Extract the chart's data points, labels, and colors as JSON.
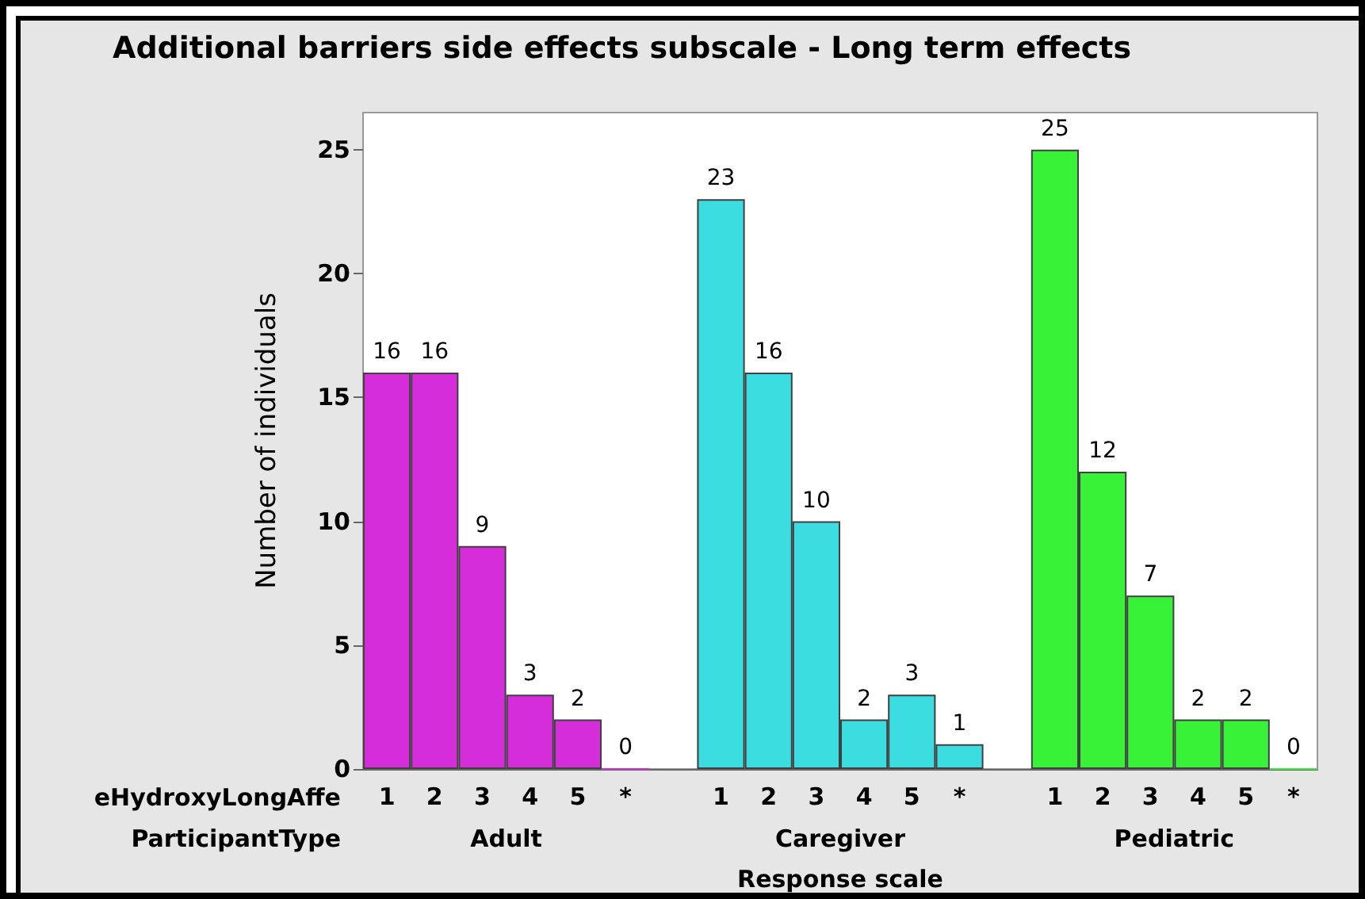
{
  "chart_data": {
    "type": "bar",
    "title": "Additional barriers side effects subscale - Long term effects",
    "xlabel": "Response scale",
    "ylabel": "Number of individuals",
    "categories": [
      "1",
      "2",
      "3",
      "4",
      "5",
      "*",
      null,
      "1",
      "2",
      "3",
      "4",
      "5",
      "*",
      null,
      "1",
      "2",
      "3",
      "4",
      "5",
      "*"
    ],
    "values": [
      16,
      16,
      9,
      3,
      2,
      0,
      null,
      23,
      16,
      10,
      2,
      3,
      1,
      null,
      25,
      12,
      7,
      2,
      2,
      0
    ],
    "colors": [
      "#d62ddb",
      "#d62ddb",
      "#d62ddb",
      "#d62ddb",
      "#d62ddb",
      "#d62ddb",
      null,
      "#3bdde0",
      "#3bdde0",
      "#3bdde0",
      "#3bdde0",
      "#3bdde0",
      "#3bdde0",
      null,
      "#38f238",
      "#38f238",
      "#38f238",
      "#38f238",
      "#38f238",
      "#38f238"
    ],
    "annotations": [
      "eHydroxyLongAffe",
      "ParticipantType",
      "Adult",
      "Caregiver",
      "Pediatric"
    ],
    "ylim": [
      0,
      26.5
    ],
    "yticks": [
      0,
      5,
      10,
      15,
      20,
      25
    ],
    "grid": false,
    "data_labels": true
  }
}
